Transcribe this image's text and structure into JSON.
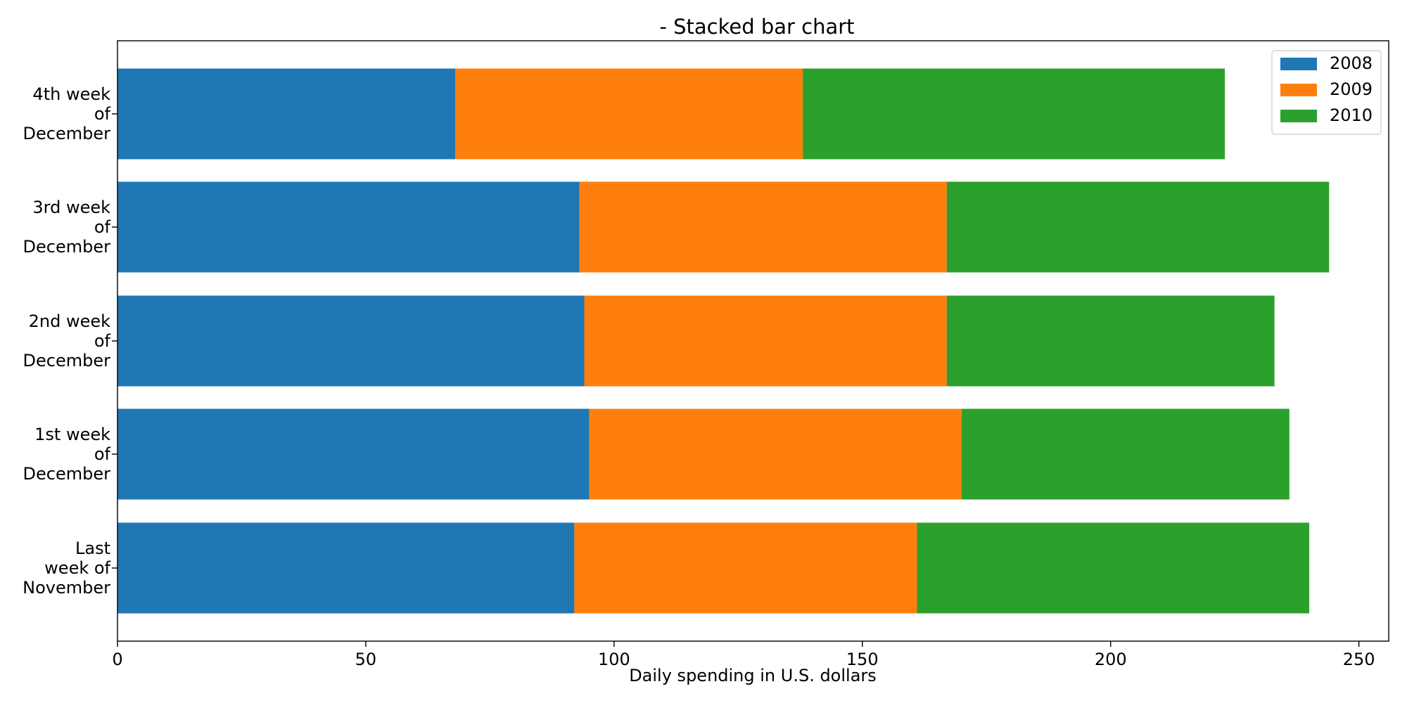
{
  "chart_data": {
    "type": "bar",
    "orientation": "horizontal",
    "stacked": true,
    "title": "- Stacked bar chart",
    "xlabel": "Daily spending in U.S. dollars",
    "ylabel": "",
    "categories": [
      [
        "Last",
        "week of",
        "November"
      ],
      [
        "1st week",
        "of",
        "December"
      ],
      [
        "2nd week",
        "of",
        "December"
      ],
      [
        "3rd week",
        "of",
        "December"
      ],
      [
        "4th week",
        "of",
        "December"
      ]
    ],
    "series": [
      {
        "name": "2008",
        "color": "#1f77b4",
        "values": [
          92,
          95,
          94,
          93,
          68
        ]
      },
      {
        "name": "2009",
        "color": "#ff7f0e",
        "values": [
          69,
          75,
          73,
          74,
          70
        ]
      },
      {
        "name": "2010",
        "color": "#2ca02c",
        "values": [
          79,
          66,
          66,
          77,
          85
        ]
      }
    ],
    "xlim": [
      0,
      256
    ],
    "xticks": [
      0,
      50,
      100,
      150,
      200,
      250
    ],
    "grid": false,
    "legend_position": "top-right"
  }
}
